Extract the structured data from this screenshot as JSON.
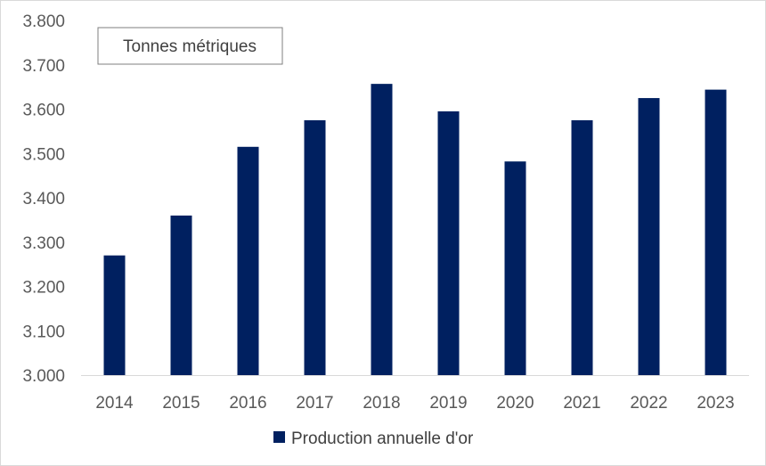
{
  "chart_data": {
    "type": "bar",
    "unit_label": "Tonnes métriques",
    "categories": [
      "2014",
      "2015",
      "2016",
      "2017",
      "2018",
      "2019",
      "2020",
      "2021",
      "2022",
      "2023"
    ],
    "series": [
      {
        "name": "Production annuelle d'or",
        "values": [
          3270,
          3360,
          3515,
          3575,
          3657,
          3595,
          3482,
          3575,
          3625,
          3644
        ]
      }
    ],
    "ylim": [
      3000,
      3800
    ],
    "yticks": [
      3000,
      3100,
      3200,
      3300,
      3400,
      3500,
      3600,
      3700,
      3800
    ],
    "ytick_labels": [
      "3.000",
      "3.100",
      "3.200",
      "3.300",
      "3.400",
      "3.500",
      "3.600",
      "3.700",
      "3.800"
    ],
    "grid": false,
    "legend_position": "bottom"
  },
  "colors": {
    "bar": "#002060",
    "axis": "#d9d9d9"
  }
}
